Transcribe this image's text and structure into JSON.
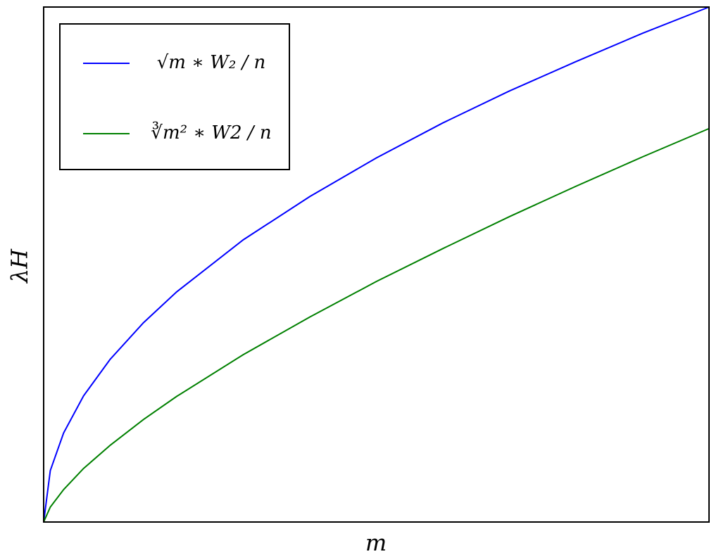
{
  "chart_data": {
    "type": "line",
    "x_label": "m",
    "y_label": "λH",
    "x": [
      0,
      0.01,
      0.03,
      0.06,
      0.1,
      0.15,
      0.2,
      0.3,
      0.4,
      0.5,
      0.6,
      0.7,
      0.8,
      0.9,
      1
    ],
    "series": [
      {
        "name": "√m ∗ W₂ / n",
        "color": "#0000ff",
        "values": [
          0,
          0.1,
          0.173,
          0.245,
          0.316,
          0.387,
          0.447,
          0.548,
          0.632,
          0.707,
          0.775,
          0.837,
          0.894,
          0.949,
          1
        ]
      },
      {
        "name": "∛m² ∗ W2 / n",
        "color": "#008000",
        "values": [
          0,
          0.029,
          0.063,
          0.104,
          0.149,
          0.199,
          0.244,
          0.325,
          0.398,
          0.467,
          0.531,
          0.593,
          0.652,
          0.709,
          0.764
        ]
      }
    ],
    "xlim": [
      0,
      1
    ],
    "ylim": [
      0,
      1
    ],
    "grid": false,
    "legend": "upper left"
  }
}
